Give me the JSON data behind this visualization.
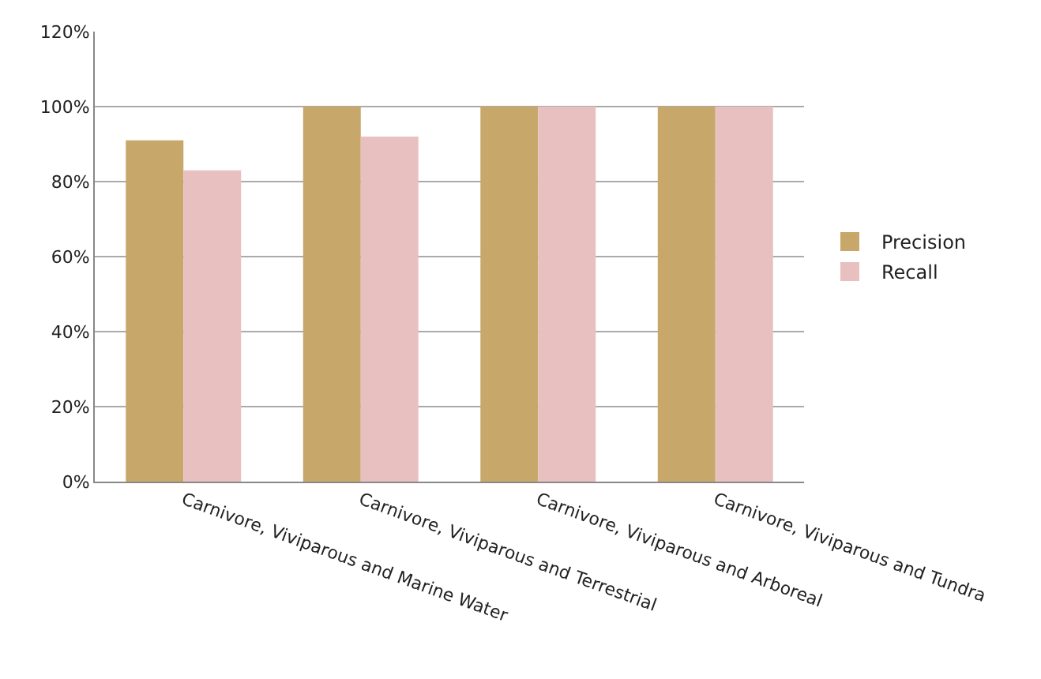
{
  "chart_data": {
    "type": "bar",
    "categories": [
      "Carnivore, Viviparous and Marine Water",
      "Carnivore, Viviparous and Terrestrial",
      "Carnivore, Viviparous and Arboreal",
      "Carnivore, Viviparous and Tundra"
    ],
    "series": [
      {
        "name": "Precision",
        "color": "#c8a86a",
        "values": [
          91,
          100,
          100,
          100
        ]
      },
      {
        "name": "Recall",
        "color": "#e9c0c0",
        "values": [
          83,
          92,
          100,
          100
        ]
      }
    ],
    "ylim": [
      0,
      120
    ],
    "yticks": [
      {
        "value": 0,
        "label": "0%"
      },
      {
        "value": 20,
        "label": "20%"
      },
      {
        "value": 40,
        "label": "40%"
      },
      {
        "value": 60,
        "label": "60%"
      },
      {
        "value": 80,
        "label": "80%"
      },
      {
        "value": 100,
        "label": "100%"
      },
      {
        "value": 120,
        "label": "120%"
      }
    ],
    "grid": "y",
    "legend": "right"
  }
}
